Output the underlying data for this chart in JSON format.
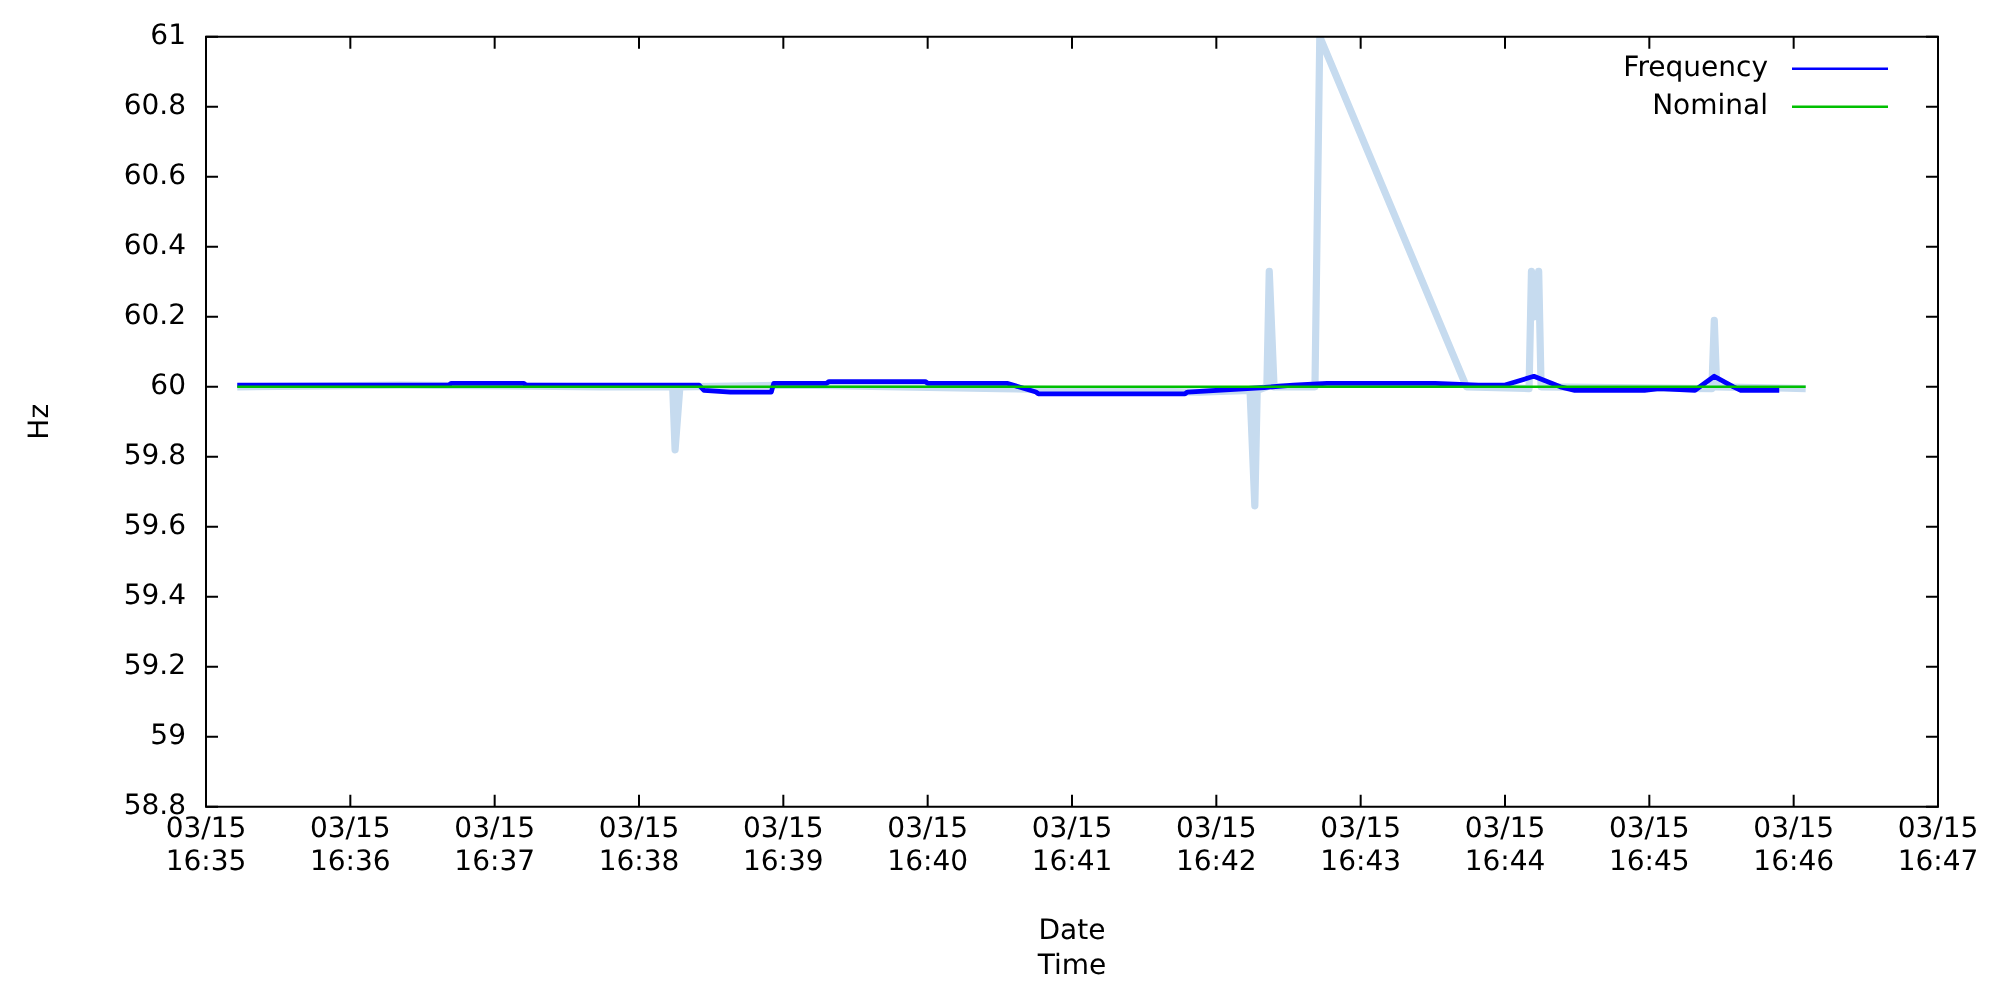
{
  "chart_data": {
    "type": "line",
    "xlabel": "Date\nTime",
    "ylabel": "Hz",
    "xlim": [
      "--03-15T16:35",
      "--03-15T16:47"
    ],
    "xticks": [
      {
        "value": "--03-15T16:35",
        "label": "03/15\n16:35"
      },
      {
        "value": "--03-15T16:36",
        "label": "03/15\n16:36"
      },
      {
        "value": "--03-15T16:37",
        "label": "03/15\n16:37"
      },
      {
        "value": "--03-15T16:38",
        "label": "03/15\n16:38"
      },
      {
        "value": "--03-15T16:39",
        "label": "03/15\n16:39"
      },
      {
        "value": "--03-15T16:40",
        "label": "03/15\n16:40"
      },
      {
        "value": "--03-15T16:41",
        "label": "03/15\n16:41"
      },
      {
        "value": "--03-15T16:42",
        "label": "03/15\n16:42"
      },
      {
        "value": "--03-15T16:43",
        "label": "03/15\n16:43"
      },
      {
        "value": "--03-15T16:44",
        "label": "03/15\n16:44"
      },
      {
        "value": "--03-15T16:45",
        "label": "03/15\n16:45"
      },
      {
        "value": "--03-15T16:46",
        "label": "03/15\n16:46"
      },
      {
        "value": "--03-15T16:47",
        "label": "03/15\n16:47"
      }
    ],
    "ylim": [
      58.8,
      61
    ],
    "yticks": [
      58.8,
      59,
      59.2,
      59.4,
      59.6,
      59.8,
      60,
      60.2,
      60.4,
      60.6,
      60.8,
      61
    ],
    "grid": false,
    "legend": "top right",
    "marker": "none",
    "line_style": "solid",
    "series": [
      {
        "color": "#c6dbef",
        "x": [
          "--03-15T16:35:13",
          "--03-15T16:36:21",
          "--03-15T16:37:44",
          "--03-15T16:38:14",
          "--03-15T16:38:15",
          "--03-15T16:38:17",
          "--03-15T16:39:07",
          "--03-15T16:40:30",
          "--03-15T16:41:53",
          "--03-15T16:42:14",
          "--03-15T16:42:16",
          "--03-15T16:42:17",
          "--03-15T16:42:21",
          "--03-15T16:42:22",
          "--03-15T16:42:24",
          "--03-15T16:42:41",
          "--03-15T16:42:42",
          "--03-15T16:42:43",
          "--03-15T16:43:44",
          "--03-15T16:44:10",
          "--03-15T16:44:11",
          "--03-15T16:44:12",
          "--03-15T16:44:14",
          "--03-15T16:44:15",
          "--03-15T16:45:26",
          "--03-15T16:45:27",
          "--03-15T16:45:28",
          "--03-15T16:46:05"
        ],
        "values": [
          60.0,
          60.005,
          60.0,
          60.0,
          59.82,
          60.0,
          60.005,
          59.995,
          59.985,
          59.99,
          59.66,
          59.99,
          60.0,
          60.33,
          60.0,
          60.0,
          60.5,
          61.0,
          60.0,
          59.995,
          60.33,
          60.2,
          60.33,
          60.0,
          59.995,
          60.19,
          60.0,
          59.995
        ]
      },
      {
        "name": "Frequency",
        "color": "#0000ff",
        "x": [
          "--03-15T16:35:13",
          "--03-15T16:36:41",
          "--03-15T16:36:42",
          "--03-15T16:37:12",
          "--03-15T16:37:13",
          "--03-15T16:38:25",
          "--03-15T16:38:27",
          "--03-15T16:38:38",
          "--03-15T16:38:55",
          "--03-15T16:38:56",
          "--03-15T16:39:18",
          "--03-15T16:39:19",
          "--03-15T16:39:59",
          "--03-15T16:40:00",
          "--03-15T16:40:33",
          "--03-15T16:40:45",
          "--03-15T16:40:46",
          "--03-15T16:41:47",
          "--03-15T16:41:48",
          "--03-15T16:42:20",
          "--03-15T16:42:32",
          "--03-15T16:42:46",
          "--03-15T16:43:31",
          "--03-15T16:43:49",
          "--03-15T16:44:00",
          "--03-15T16:44:12",
          "--03-15T16:44:23",
          "--03-15T16:44:29",
          "--03-15T16:44:58",
          "--03-15T16:45:04",
          "--03-15T16:45:19",
          "--03-15T16:45:27",
          "--03-15T16:45:35",
          "--03-15T16:45:38",
          "--03-15T16:45:54"
        ],
        "values": [
          60.005,
          60.005,
          60.01,
          60.01,
          60.005,
          60.005,
          59.99,
          59.985,
          59.985,
          60.01,
          60.01,
          60.015,
          60.015,
          60.01,
          60.01,
          59.985,
          59.98,
          59.98,
          59.985,
          59.998,
          60.005,
          60.01,
          60.01,
          60.005,
          60.005,
          60.03,
          60.0,
          59.99,
          59.99,
          59.995,
          59.99,
          60.03,
          60.0,
          59.99,
          59.99
        ]
      },
      {
        "name": "Nominal",
        "color": "#00c000",
        "x": [
          "--03-15T16:35:13",
          "--03-15T16:46:05"
        ],
        "values": [
          60,
          60
        ]
      }
    ]
  }
}
